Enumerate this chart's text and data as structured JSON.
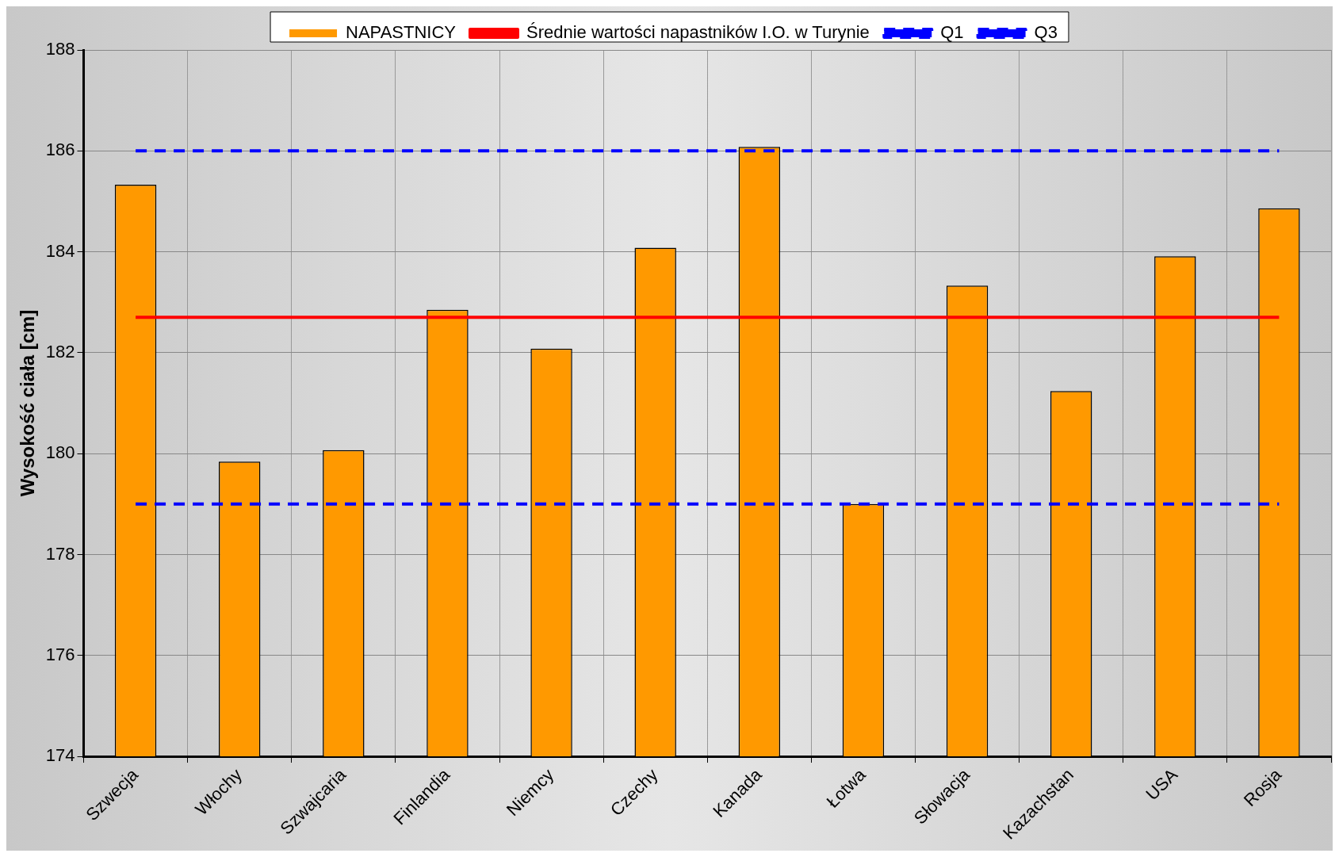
{
  "chart_data": {
    "type": "bar",
    "ylabel": "Wysokość ciała [cm]",
    "categories": [
      "Szwecja",
      "Włochy",
      "Szwajcaria",
      "Finlandia",
      "Niemcy",
      "Czechy",
      "Kanada",
      "Łotwa",
      "Słowacja",
      "Kazachstan",
      "USA",
      "Rosja"
    ],
    "series": [
      {
        "name": "NAPASTNICY",
        "color": "#ff9900",
        "values": [
          185.33,
          179.84,
          180.07,
          182.85,
          182.08,
          184.08,
          186.08,
          179.0,
          183.33,
          181.24,
          183.91,
          184.86
        ]
      },
      {
        "name": "Średnie wartości napastników I.O. w Turynie",
        "type": "line",
        "color": "#ff0000",
        "line_style": "solid",
        "values": [
          182.7,
          182.7,
          182.7,
          182.7,
          182.7,
          182.7,
          182.7,
          182.7,
          182.7,
          182.7,
          182.7,
          182.7
        ]
      },
      {
        "name": "Q1",
        "type": "line",
        "color": "#0000ff",
        "line_style": "dashed",
        "values": [
          186,
          186,
          186,
          186,
          186,
          186,
          186,
          186,
          186,
          186,
          186,
          186
        ]
      },
      {
        "name": "Q3",
        "type": "line",
        "color": "#0000ff",
        "line_style": "dashed",
        "values": [
          179,
          179,
          179,
          179,
          179,
          179,
          179,
          179,
          179,
          179,
          179,
          179
        ]
      }
    ],
    "ylim": [
      174,
      188
    ],
    "yticks": [
      174,
      176,
      178,
      180,
      182,
      184,
      186,
      188
    ],
    "grid": true,
    "legend": "top",
    "marker": "none"
  }
}
